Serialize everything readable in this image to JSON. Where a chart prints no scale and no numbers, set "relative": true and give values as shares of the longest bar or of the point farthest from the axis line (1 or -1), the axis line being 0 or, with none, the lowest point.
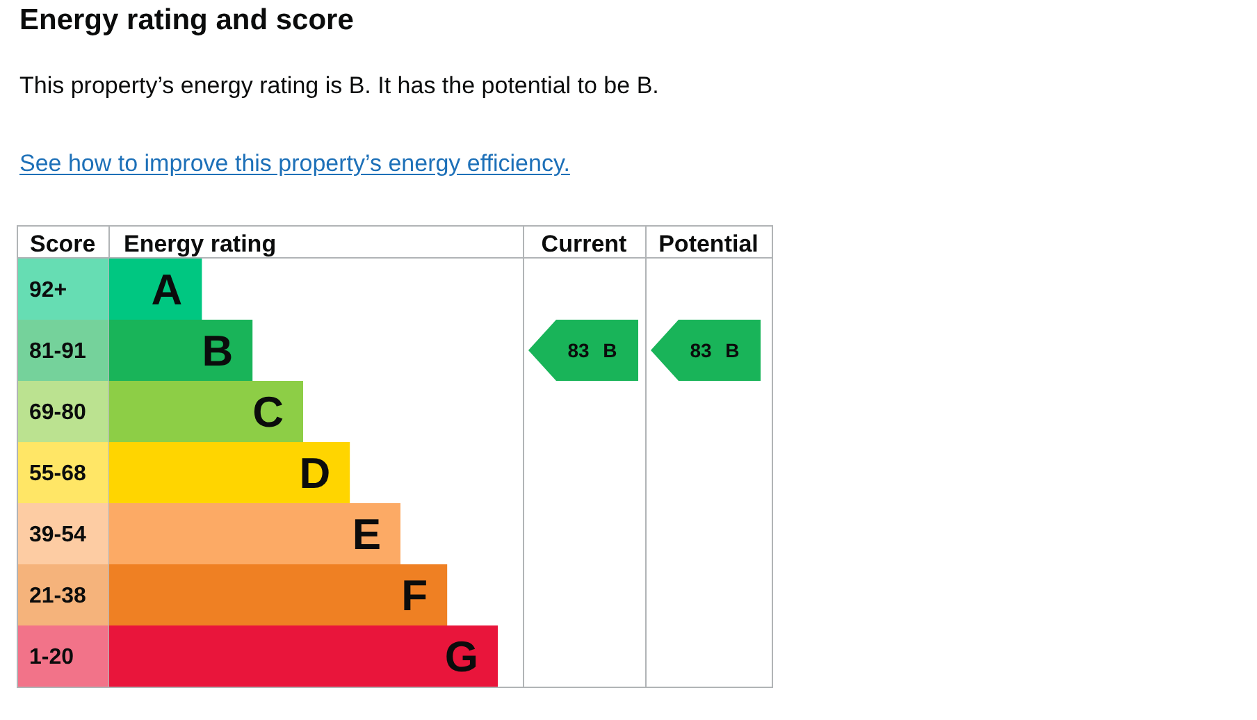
{
  "chart_data": {
    "type": "bar",
    "orientation": "horizontal",
    "relative": true,
    "title": "Energy rating and score",
    "subtitle": "This property’s energy rating is B. It has the potential to be B.",
    "ylabel": "Score",
    "xlabel": "Energy rating",
    "categories": [
      "92+",
      "81-91",
      "69-80",
      "55-68",
      "39-54",
      "21-38",
      "1-20"
    ],
    "y2_categories": [
      "A",
      "B",
      "C",
      "D",
      "E",
      "F",
      "G"
    ],
    "values": [
      0.24,
      0.37,
      0.5,
      0.62,
      0.75,
      0.87,
      1
    ],
    "colors": [
      "#00c781",
      "#19b459",
      "#8dce46",
      "#ffd500",
      "#fcaa65",
      "#ef8023",
      "#e9153b"
    ],
    "annotations": [
      "See how to improve this property’s energy efficiency.",
      "Current",
      "83 B",
      "Potential",
      "83 B"
    ]
  }
}
